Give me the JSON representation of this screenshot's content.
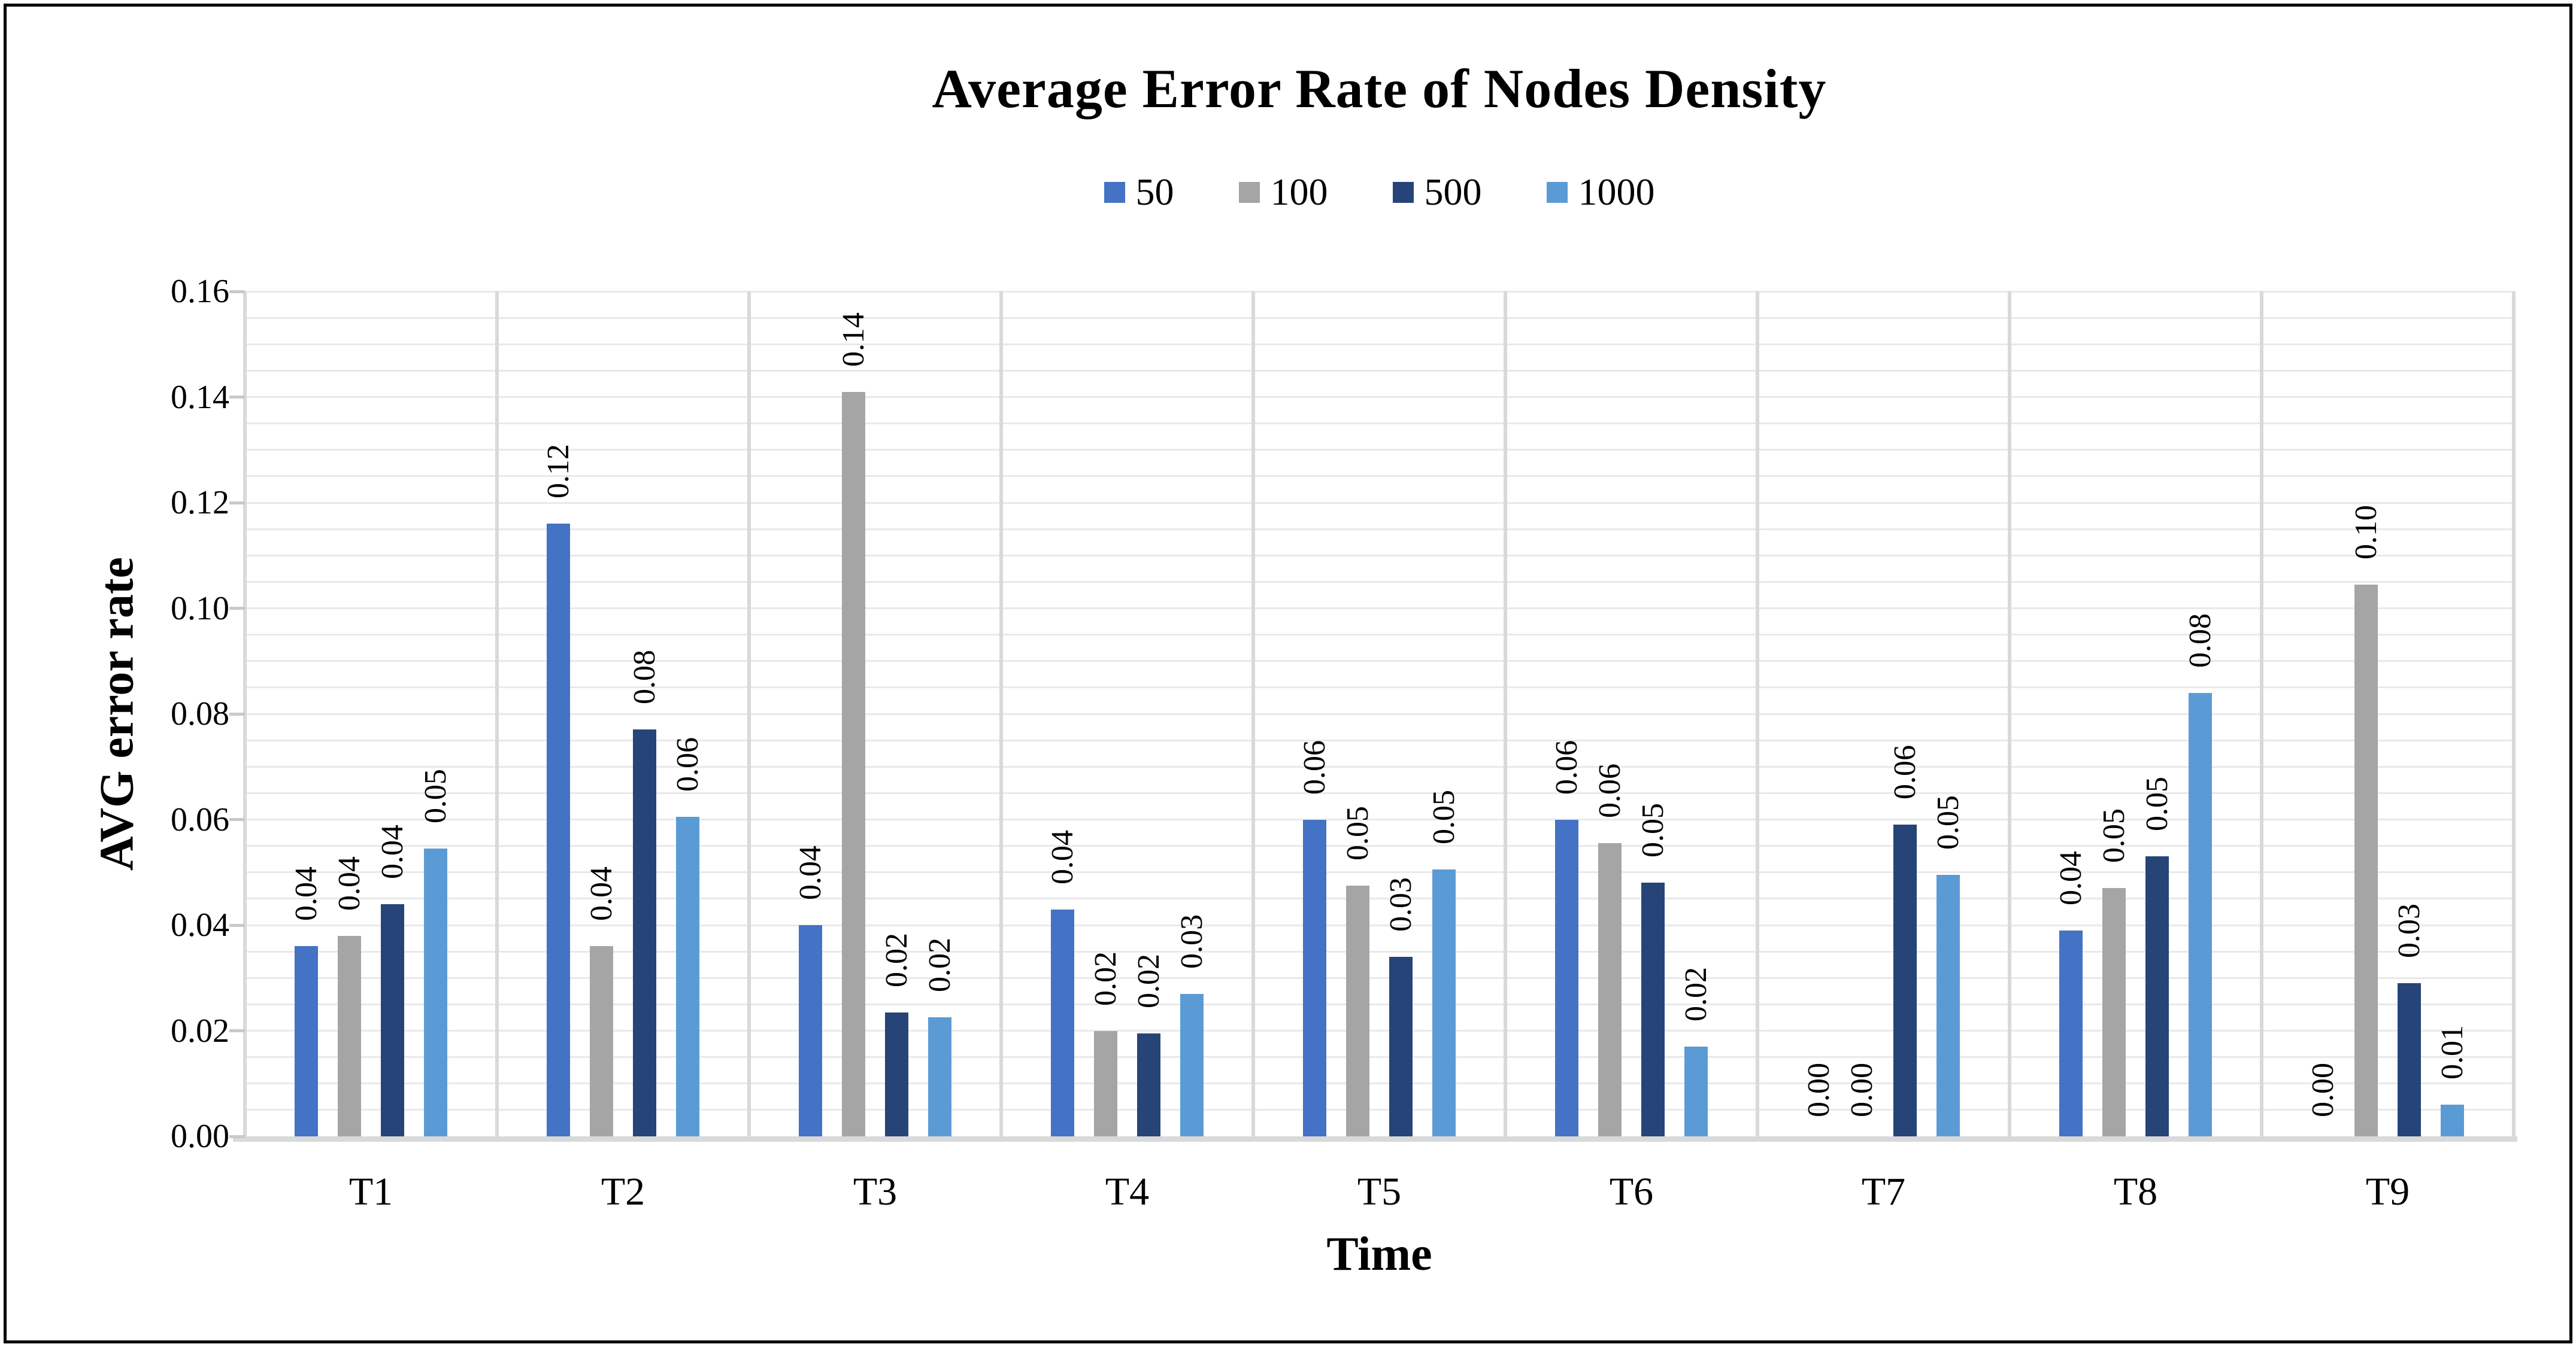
{
  "title": "Average Error Rate of Nodes Density",
  "axes": {
    "y_title": "AVG error rate",
    "x_title": "Time",
    "y_ticks": [
      "0.00",
      "0.02",
      "0.04",
      "0.06",
      "0.08",
      "0.10",
      "0.12",
      "0.14",
      "0.16"
    ],
    "y_minor_step": 0.005
  },
  "legend": [
    {
      "label": "50",
      "color": "#4472C4"
    },
    {
      "label": "100",
      "color": "#A5A5A5"
    },
    {
      "label": "500",
      "color": "#264478"
    },
    {
      "label": "1000",
      "color": "#5B9BD5"
    }
  ],
  "colors": {
    "series_50": "#4472C4",
    "series_100": "#A5A5A5",
    "series_500": "#264478",
    "series_1000": "#5B9BD5",
    "gridline": "#e9e9e9",
    "axis": "#d9d9d9"
  },
  "chart_data": {
    "type": "bar",
    "title": "Average Error Rate of Nodes Density",
    "xlabel": "Time",
    "ylabel": "AVG error rate",
    "ylim": [
      0,
      0.16
    ],
    "grid": "on",
    "legend_position": "top-center",
    "categories": [
      "T1",
      "T2",
      "T3",
      "T4",
      "T5",
      "T6",
      "T7",
      "T8",
      "T9"
    ],
    "series": [
      {
        "name": "50",
        "color": "#4472C4",
        "values": [
          0.036,
          0.116,
          0.04,
          0.043,
          0.06,
          0.06,
          0.0,
          0.039,
          0.0
        ],
        "labels": [
          "0.04",
          "0.12",
          "0.04",
          "0.04",
          "0.06",
          "0.06",
          "0.00",
          "0.04",
          "0.00"
        ]
      },
      {
        "name": "100",
        "color": "#A5A5A5",
        "values": [
          0.038,
          0.036,
          0.141,
          0.02,
          0.0475,
          0.0555,
          0.0,
          0.047,
          0.1045
        ],
        "labels": [
          "0.04",
          "0.04",
          "0.14",
          "0.02",
          "0.05",
          "0.06",
          "0.00",
          "0.05",
          "0.10"
        ]
      },
      {
        "name": "500",
        "color": "#264478",
        "values": [
          0.044,
          0.077,
          0.0235,
          0.0195,
          0.034,
          0.048,
          0.059,
          0.053,
          0.029
        ],
        "labels": [
          "0.04",
          "0.08",
          "0.02",
          "0.02",
          "0.03",
          "0.05",
          "0.06",
          "0.05",
          "0.03"
        ]
      },
      {
        "name": "1000",
        "color": "#5B9BD5",
        "values": [
          0.0545,
          0.0605,
          0.0225,
          0.027,
          0.0505,
          0.017,
          0.0495,
          0.084,
          0.006
        ],
        "labels": [
          "0.05",
          "0.06",
          "0.02",
          "0.03",
          "0.05",
          "0.02",
          "0.05",
          "0.08",
          "0.01"
        ]
      }
    ]
  }
}
